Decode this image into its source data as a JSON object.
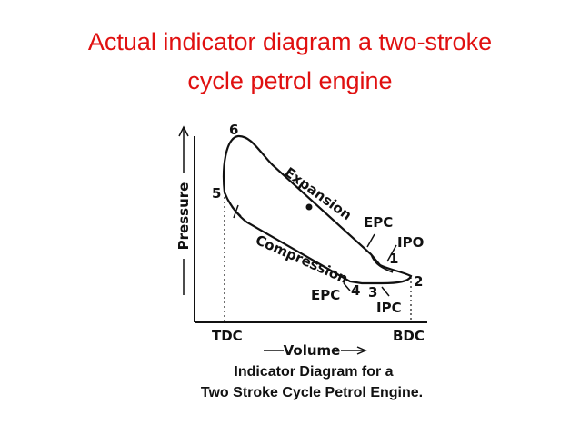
{
  "title": {
    "lines": [
      "Actual indicator diagram a two-stroke",
      "cycle petrol engine"
    ]
  },
  "diagram": {
    "points": {
      "p6": "6",
      "p5": "5",
      "p1": "1",
      "p2": "2",
      "p3": "3",
      "p4": "4"
    },
    "labels": {
      "expansion": "Expansion",
      "compression": "Compression",
      "epc_top": "EPC",
      "ipo": "IPO",
      "epc_bottom": "EPC",
      "ipc": "IPC",
      "tdc": "TDC",
      "bdc": "BDC"
    },
    "axes": {
      "y_label": "Pressure",
      "x_label": "Volume"
    },
    "caption": [
      "Indicator Diagram for a",
      "Two Stroke Cycle Petrol Engine."
    ]
  }
}
